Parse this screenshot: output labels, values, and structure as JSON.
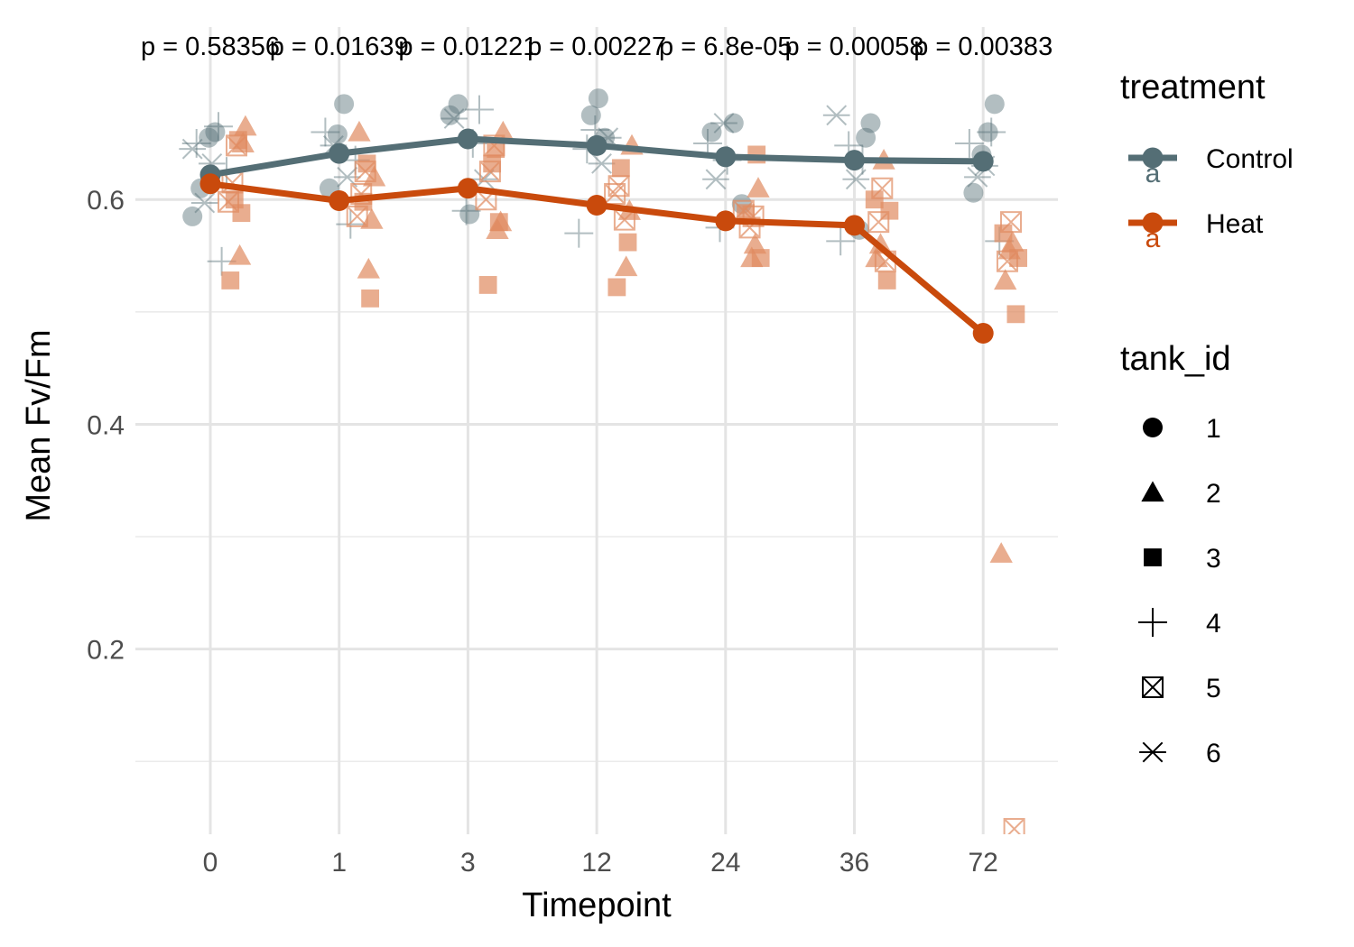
{
  "chart_data": {
    "type": "line",
    "xlabel": "Timepoint",
    "ylabel": "Mean Fv/Fm",
    "categories": [
      "0",
      "1",
      "3",
      "12",
      "24",
      "36",
      "72"
    ],
    "ylim": [
      0.03,
      0.7
    ],
    "yticks": [
      0.2,
      0.4,
      0.6
    ],
    "grid": true,
    "p_values": [
      "p = 0.58356",
      "p = 0.01639",
      "p = 0.01221",
      "p = 0.00227",
      "p = 6.8e-05",
      "p = 0.00058",
      "p = 0.00383"
    ],
    "series": [
      {
        "name": "Control",
        "color": "#546e75",
        "letter": "a",
        "values": [
          0.622,
          0.641,
          0.654,
          0.648,
          0.638,
          0.635,
          0.634
        ]
      },
      {
        "name": "Heat",
        "color": "#c94a0c",
        "letter": "a",
        "values": [
          0.614,
          0.599,
          0.61,
          0.595,
          0.581,
          0.577,
          0.481
        ]
      }
    ],
    "individual_points": {
      "Control": {
        "color": "#546e75",
        "points": [
          [
            0,
            0.585,
            1
          ],
          [
            0,
            0.61,
            1
          ],
          [
            0,
            0.655,
            1
          ],
          [
            0,
            0.66,
            1
          ],
          [
            0,
            0.545,
            4
          ],
          [
            0,
            0.625,
            4
          ],
          [
            0,
            0.65,
            4
          ],
          [
            0,
            0.665,
            4
          ],
          [
            0,
            0.597,
            6
          ],
          [
            0,
            0.632,
            6
          ],
          [
            0,
            0.645,
            6
          ],
          [
            1,
            0.61,
            1
          ],
          [
            1,
            0.658,
            1
          ],
          [
            1,
            0.685,
            1
          ],
          [
            1,
            0.578,
            4
          ],
          [
            1,
            0.635,
            4
          ],
          [
            1,
            0.66,
            4
          ],
          [
            1,
            0.62,
            6
          ],
          [
            1,
            0.648,
            6
          ],
          [
            2,
            0.587,
            1
          ],
          [
            2,
            0.675,
            1
          ],
          [
            2,
            0.685,
            1
          ],
          [
            2,
            0.59,
            4
          ],
          [
            2,
            0.65,
            4
          ],
          [
            2,
            0.68,
            4
          ],
          [
            2,
            0.618,
            6
          ],
          [
            2,
            0.672,
            6
          ],
          [
            3,
            0.655,
            1
          ],
          [
            3,
            0.675,
            1
          ],
          [
            3,
            0.69,
            1
          ],
          [
            3,
            0.57,
            4
          ],
          [
            3,
            0.645,
            4
          ],
          [
            3,
            0.662,
            4
          ],
          [
            3,
            0.632,
            6
          ],
          [
            3,
            0.655,
            6
          ],
          [
            4,
            0.596,
            1
          ],
          [
            4,
            0.66,
            1
          ],
          [
            4,
            0.668,
            1
          ],
          [
            4,
            0.575,
            4
          ],
          [
            4,
            0.635,
            4
          ],
          [
            4,
            0.65,
            4
          ],
          [
            4,
            0.618,
            6
          ],
          [
            4,
            0.668,
            6
          ],
          [
            5,
            0.573,
            1
          ],
          [
            5,
            0.655,
            1
          ],
          [
            5,
            0.668,
            1
          ],
          [
            5,
            0.563,
            4
          ],
          [
            5,
            0.635,
            4
          ],
          [
            5,
            0.648,
            4
          ],
          [
            5,
            0.618,
            6
          ],
          [
            5,
            0.675,
            6
          ],
          [
            6,
            0.606,
            1
          ],
          [
            6,
            0.64,
            1
          ],
          [
            6,
            0.66,
            1
          ],
          [
            6,
            0.685,
            1
          ],
          [
            6,
            0.563,
            4
          ],
          [
            6,
            0.65,
            4
          ],
          [
            6,
            0.66,
            4
          ],
          [
            6,
            0.62,
            6
          ],
          [
            6,
            0.63,
            6
          ]
        ]
      },
      "Heat": {
        "color": "#e08a60",
        "points": [
          [
            0,
            0.55,
            2
          ],
          [
            0,
            0.65,
            2
          ],
          [
            0,
            0.665,
            2
          ],
          [
            0,
            0.528,
            3
          ],
          [
            0,
            0.588,
            3
          ],
          [
            0,
            0.6,
            3
          ],
          [
            0,
            0.653,
            3
          ],
          [
            0,
            0.598,
            5
          ],
          [
            0,
            0.615,
            5
          ],
          [
            0,
            0.648,
            5
          ],
          [
            1,
            0.538,
            2
          ],
          [
            1,
            0.582,
            2
          ],
          [
            1,
            0.62,
            2
          ],
          [
            1,
            0.66,
            2
          ],
          [
            1,
            0.512,
            3
          ],
          [
            1,
            0.598,
            3
          ],
          [
            1,
            0.632,
            3
          ],
          [
            1,
            0.585,
            5
          ],
          [
            1,
            0.605,
            5
          ],
          [
            1,
            0.625,
            5
          ],
          [
            2,
            0.573,
            2
          ],
          [
            2,
            0.58,
            2
          ],
          [
            2,
            0.66,
            2
          ],
          [
            2,
            0.524,
            3
          ],
          [
            2,
            0.58,
            3
          ],
          [
            2,
            0.632,
            3
          ],
          [
            2,
            0.645,
            3
          ],
          [
            2,
            0.6,
            5
          ],
          [
            2,
            0.625,
            5
          ],
          [
            2,
            0.648,
            5
          ],
          [
            3,
            0.54,
            2
          ],
          [
            3,
            0.59,
            2
          ],
          [
            3,
            0.648,
            2
          ],
          [
            3,
            0.522,
            3
          ],
          [
            3,
            0.562,
            3
          ],
          [
            3,
            0.628,
            3
          ],
          [
            3,
            0.582,
            5
          ],
          [
            3,
            0.605,
            5
          ],
          [
            3,
            0.612,
            5
          ],
          [
            4,
            0.548,
            2
          ],
          [
            4,
            0.56,
            2
          ],
          [
            4,
            0.61,
            2
          ],
          [
            4,
            0.548,
            3
          ],
          [
            4,
            0.588,
            3
          ],
          [
            4,
            0.64,
            3
          ],
          [
            4,
            0.575,
            5
          ],
          [
            4,
            0.585,
            5
          ],
          [
            4,
            0.59,
            5
          ],
          [
            5,
            0.548,
            2
          ],
          [
            5,
            0.56,
            2
          ],
          [
            5,
            0.635,
            2
          ],
          [
            5,
            0.528,
            3
          ],
          [
            5,
            0.59,
            3
          ],
          [
            5,
            0.6,
            3
          ],
          [
            5,
            0.545,
            5
          ],
          [
            5,
            0.58,
            5
          ],
          [
            5,
            0.61,
            5
          ],
          [
            6,
            0.285,
            2
          ],
          [
            6,
            0.528,
            2
          ],
          [
            6,
            0.555,
            2
          ],
          [
            6,
            0.562,
            2
          ],
          [
            6,
            0.498,
            3
          ],
          [
            6,
            0.548,
            3
          ],
          [
            6,
            0.57,
            3
          ],
          [
            6,
            0.04,
            5
          ],
          [
            6,
            0.545,
            5
          ],
          [
            6,
            0.58,
            5
          ]
        ]
      }
    },
    "legend": {
      "treatment": {
        "title": "treatment",
        "items": [
          {
            "label": "Control",
            "color": "#546e75",
            "letter": "a"
          },
          {
            "label": "Heat",
            "color": "#c94a0c",
            "letter": "a"
          }
        ]
      },
      "tank_id": {
        "title": "tank_id",
        "items": [
          {
            "label": "1",
            "shape": "circle"
          },
          {
            "label": "2",
            "shape": "triangle"
          },
          {
            "label": "3",
            "shape": "square"
          },
          {
            "label": "4",
            "shape": "plus"
          },
          {
            "label": "5",
            "shape": "square-cross"
          },
          {
            "label": "6",
            "shape": "asterisk"
          }
        ]
      },
      "placement": "right"
    }
  }
}
